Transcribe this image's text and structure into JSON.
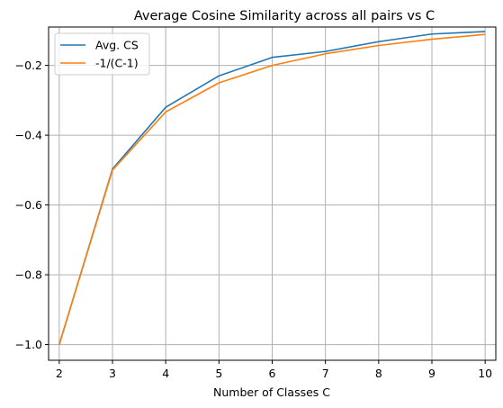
{
  "chart_data": {
    "type": "line",
    "title": "Average Cosine Similarity across all pairs vs C",
    "xlabel": "Number of Classes C",
    "ylabel": "",
    "x": [
      2,
      3,
      4,
      5,
      6,
      7,
      8,
      9,
      10
    ],
    "xlim": [
      1.8,
      10.2
    ],
    "ylim": [
      -1.045,
      -0.09
    ],
    "xticks": [
      2,
      3,
      4,
      5,
      6,
      7,
      8,
      9,
      10
    ],
    "yticks": [
      -1.0,
      -0.8,
      -0.6,
      -0.4,
      -0.2
    ],
    "ytick_labels": [
      "−1.0",
      "−0.8",
      "−0.6",
      "−0.4",
      "−0.2"
    ],
    "grid": true,
    "legend_position": "top-left",
    "series": [
      {
        "name": "Avg. CS",
        "color": "#1f77b4",
        "values": [
          -1.0,
          -0.497,
          -0.32,
          -0.23,
          -0.177,
          -0.16,
          -0.132,
          -0.11,
          -0.103
        ]
      },
      {
        "name": "-1/(C-1)",
        "color": "#ff7f0e",
        "values": [
          -1.0,
          -0.5,
          -0.3333,
          -0.25,
          -0.2,
          -0.1667,
          -0.1429,
          -0.125,
          -0.1111
        ]
      }
    ]
  }
}
